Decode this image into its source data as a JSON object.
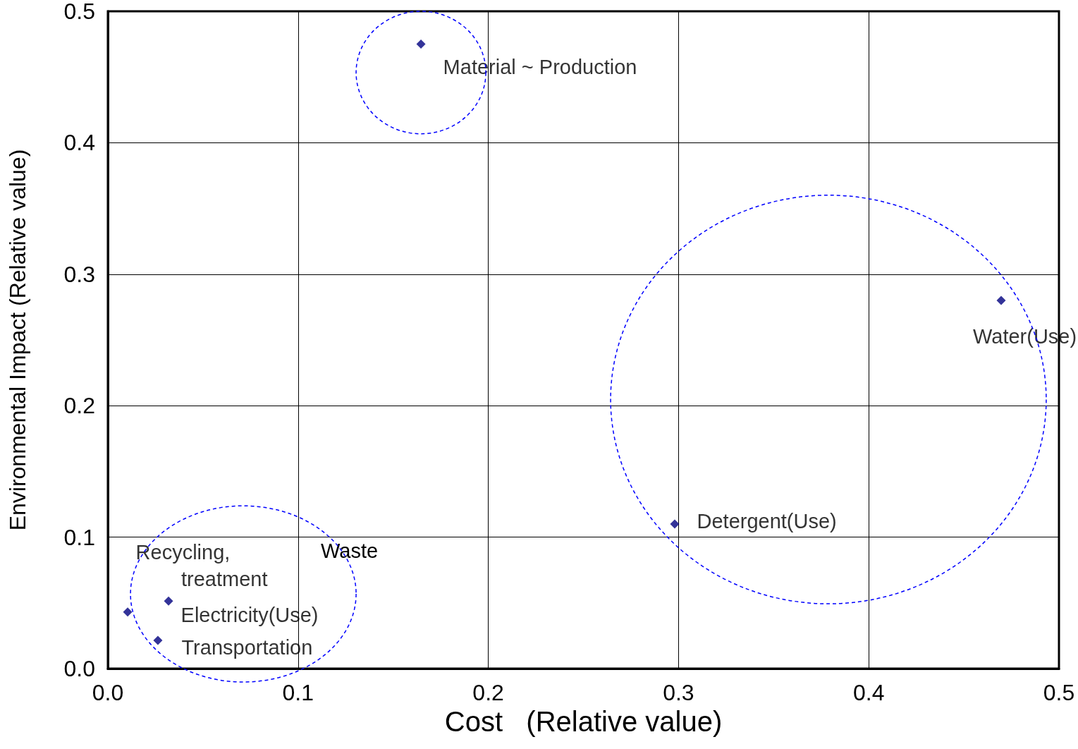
{
  "chart_data": {
    "type": "scatter",
    "xlabel": "Cost   (Relative value)",
    "ylabel": "Environmental Impact (Relative value)",
    "x": [
      0.1646,
      0.4696,
      0.298,
      0.0104,
      0.0319,
      0.0263
    ],
    "series": [
      {
        "color": "#000080",
        "values": [
          0.475,
          0.28,
          0.11,
          0.043,
          0.0514,
          0.0214
        ],
        "value_labels": [
          "Material ~ Production",
          "Water(Use)",
          "Detergent(Use)",
          "Recycling,\n        treatment",
          "Electricity(Use)",
          "Transportation"
        ]
      }
    ],
    "annotations": [
      "Waste"
    ],
    "xlim": [
      0,
      0.5
    ],
    "ylim": [
      0,
      0.5
    ],
    "xticks": [
      {
        "value": 0,
        "label": "0.0"
      },
      0.1,
      0.2,
      0.3,
      0.4,
      0.5
    ],
    "yticks": [
      {
        "value": 0,
        "label": "0.0"
      },
      0.1,
      0.2,
      0.3,
      0.4,
      0.5
    ],
    "grid": true,
    "marker": "diamond"
  }
}
